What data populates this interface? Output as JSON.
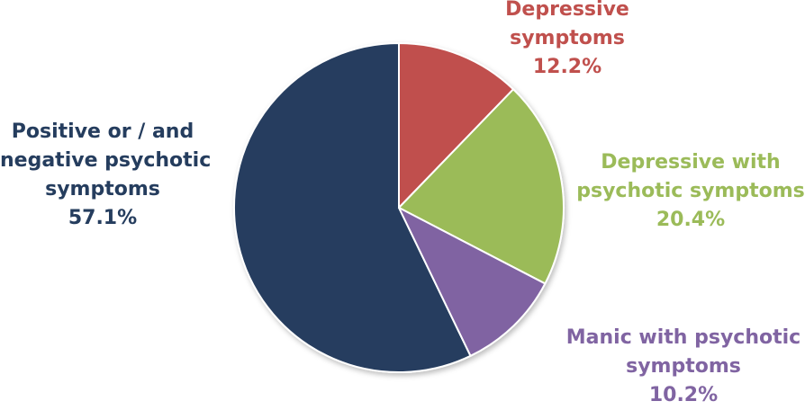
{
  "chart_data": {
    "type": "pie",
    "slices": [
      {
        "label_lines": [
          "Positive or / and",
          "negative psychotic",
          "symptoms"
        ],
        "value": 57.1,
        "value_label": "57.1%",
        "color": "#253D5E"
      },
      {
        "label_lines": [
          "Depressive",
          "symptoms"
        ],
        "value": 12.2,
        "value_label": "12.2%",
        "color": "#C0504D"
      },
      {
        "label_lines": [
          "Depressive with",
          "psychotic symptoms"
        ],
        "value": 20.4,
        "value_label": "20.4%",
        "color": "#9BBB59"
      },
      {
        "label_lines": [
          "Manic with psychotic",
          "symptoms"
        ],
        "value": 10.2,
        "value_label": "10.2%",
        "color": "#8064A2"
      }
    ],
    "start_angle_deg": 0,
    "direction": "clockwise",
    "legend": "none"
  }
}
